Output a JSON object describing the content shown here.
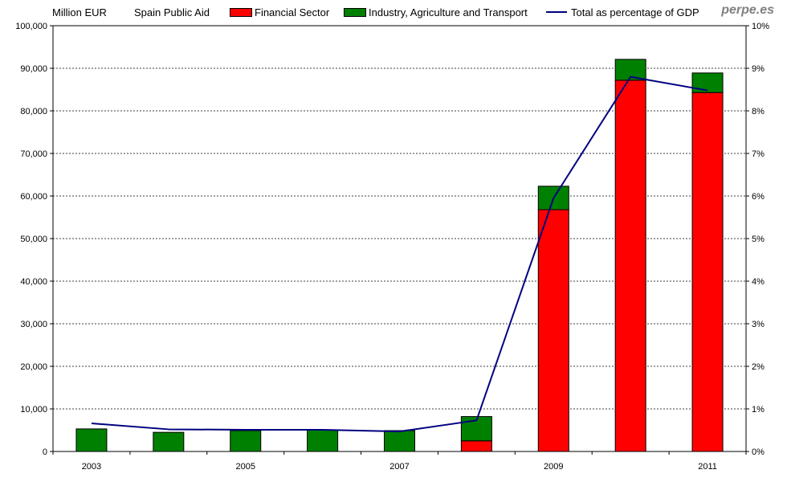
{
  "header": {
    "unit_label": "Million EUR",
    "title": "Spain Public Aid",
    "brand": "perpe.es"
  },
  "colors": {
    "financial": "#ff0000",
    "industry": "#008000",
    "line": "#000080"
  },
  "chart_data": {
    "type": "bar",
    "stacked": true,
    "title": "Spain Public Aid",
    "ylabel": "Million EUR",
    "categories": [
      "2003",
      "2004",
      "2005",
      "2006",
      "2007",
      "2008",
      "2009",
      "2010",
      "2011"
    ],
    "x_tick_labels": [
      "2003",
      "",
      "2005",
      "",
      "2007",
      "",
      "2009",
      "",
      "2011"
    ],
    "series": [
      {
        "name": "Financial Sector",
        "color": "#ff0000",
        "values": [
          0,
          0,
          0,
          0,
          0,
          2500,
          56800,
          87200,
          84300
        ]
      },
      {
        "name": "Industry, Agriculture and Transport",
        "color": "#008000",
        "values": [
          5300,
          4500,
          4900,
          5000,
          4900,
          5700,
          5500,
          4900,
          4600
        ]
      }
    ],
    "line_series": {
      "name": "Total as percentage of GDP",
      "axis": "right",
      "color": "#000080",
      "values": [
        0.66,
        0.52,
        0.51,
        0.51,
        0.47,
        0.73,
        5.95,
        8.8,
        8.48
      ]
    },
    "ylim": [
      0,
      100000
    ],
    "y_ticks": [
      "0",
      "10,000",
      "20,000",
      "30,000",
      "40,000",
      "50,000",
      "60,000",
      "70,000",
      "80,000",
      "90,000",
      "100,000"
    ],
    "y2lim": [
      0,
      10
    ],
    "y2_ticks": [
      "0%",
      "1%",
      "2%",
      "3%",
      "4%",
      "5%",
      "6%",
      "7%",
      "8%",
      "9%",
      "10%"
    ],
    "grid": true,
    "legend_position": "top"
  }
}
